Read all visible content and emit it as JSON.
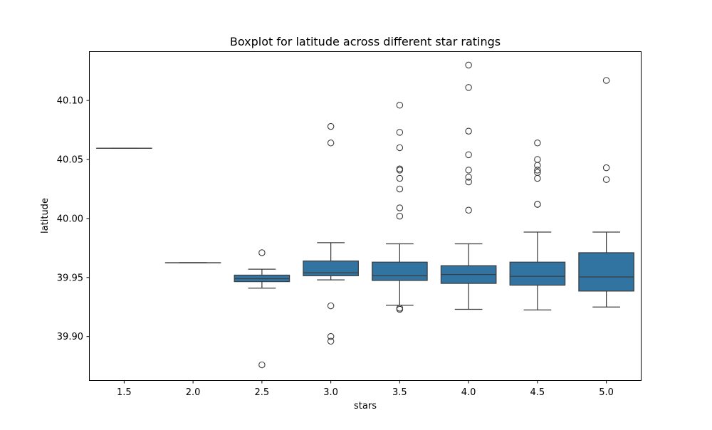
{
  "chart_data": {
    "type": "boxplot",
    "title": "Boxplot for latitude across different star ratings",
    "xlabel": "stars",
    "ylabel": "latitude",
    "ylim": [
      39.863,
      40.1411
    ],
    "yticks": [
      "39.90",
      "39.95",
      "40.00",
      "40.05",
      "40.10"
    ],
    "grid": false,
    "box_color": "#3274a1",
    "line_color": "#3d3d3d",
    "categories": [
      "1.5",
      "2.0",
      "2.5",
      "3.0",
      "3.5",
      "4.0",
      "4.5",
      "5.0"
    ],
    "boxes": [
      {
        "q1": 40.0595,
        "median": 40.0595,
        "q3": 40.0595,
        "whisker_low": 40.0595,
        "whisker_high": 40.0595,
        "outliers": []
      },
      {
        "q1": 39.9625,
        "median": 39.9625,
        "q3": 39.9625,
        "whisker_low": 39.9625,
        "whisker_high": 39.9625,
        "outliers": []
      },
      {
        "q1": 39.9465,
        "median": 39.949,
        "q3": 39.952,
        "whisker_low": 39.941,
        "whisker_high": 39.957,
        "outliers": [
          39.971,
          39.876
        ]
      },
      {
        "q1": 39.9515,
        "median": 39.954,
        "q3": 39.964,
        "whisker_low": 39.948,
        "whisker_high": 39.9795,
        "outliers": [
          40.078,
          40.064,
          39.926,
          39.9,
          39.896
        ]
      },
      {
        "q1": 39.9475,
        "median": 39.9515,
        "q3": 39.963,
        "whisker_low": 39.9265,
        "whisker_high": 39.9785,
        "outliers": [
          40.096,
          40.073,
          40.06,
          40.042,
          40.041,
          40.034,
          40.025,
          40.009,
          40.002,
          39.924,
          39.923
        ]
      },
      {
        "q1": 39.945,
        "median": 39.9525,
        "q3": 39.96,
        "whisker_low": 39.923,
        "whisker_high": 39.9785,
        "outliers": [
          40.13,
          40.111,
          40.074,
          40.054,
          40.041,
          40.035,
          40.031,
          40.007
        ]
      },
      {
        "q1": 39.9435,
        "median": 39.951,
        "q3": 39.963,
        "whisker_low": 39.9225,
        "whisker_high": 39.9885,
        "outliers": [
          40.064,
          40.05,
          40.045,
          40.041,
          40.039,
          40.034,
          40.012,
          40.012
        ]
      },
      {
        "q1": 39.9385,
        "median": 39.9505,
        "q3": 39.971,
        "whisker_low": 39.925,
        "whisker_high": 39.9885,
        "outliers": [
          40.117,
          40.043,
          40.033
        ]
      }
    ]
  }
}
